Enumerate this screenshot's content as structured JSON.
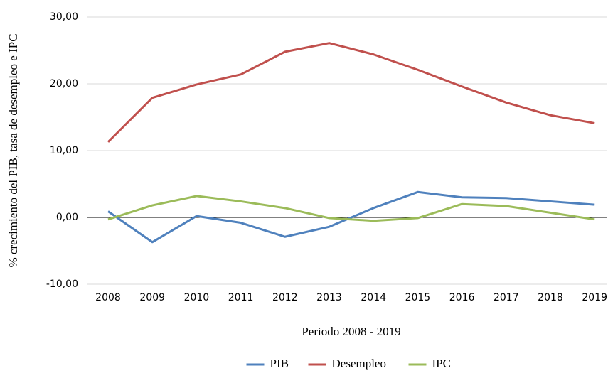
{
  "chart_data": {
    "type": "line",
    "x_label": "Periodo 2008 - 2019",
    "y_label": "% crecimiento del PIB, tasa de desempleo e IPC",
    "categories": [
      "2008",
      "2009",
      "2010",
      "2011",
      "2012",
      "2013",
      "2014",
      "2015",
      "2016",
      "2017",
      "2018",
      "2019"
    ],
    "series": [
      {
        "name": "PIB",
        "color": "#4f81bd",
        "values": [
          0.9,
          -3.7,
          0.2,
          -0.8,
          -2.9,
          -1.4,
          1.4,
          3.8,
          3.0,
          2.9,
          2.4,
          1.9
        ]
      },
      {
        "name": "Desempleo",
        "color": "#c0504d",
        "values": [
          11.3,
          17.9,
          19.9,
          21.4,
          24.8,
          26.1,
          24.4,
          22.1,
          19.6,
          17.2,
          15.3,
          14.1
        ]
      },
      {
        "name": "IPC",
        "color": "#9bbb59",
        "values": [
          -0.3,
          1.8,
          3.2,
          2.4,
          1.4,
          -0.1,
          -0.5,
          -0.1,
          2.0,
          1.7,
          0.7,
          -0.3
        ]
      }
    ],
    "ylim": [
      -10,
      30
    ],
    "yticks": [
      {
        "value": -10,
        "label": "-10,00"
      },
      {
        "value": 0,
        "label": "0,00"
      },
      {
        "value": 10,
        "label": "10,00"
      },
      {
        "value": 20,
        "label": "20,00"
      },
      {
        "value": 30,
        "label": "30,00"
      }
    ],
    "grid": true,
    "legend": "bottom"
  }
}
